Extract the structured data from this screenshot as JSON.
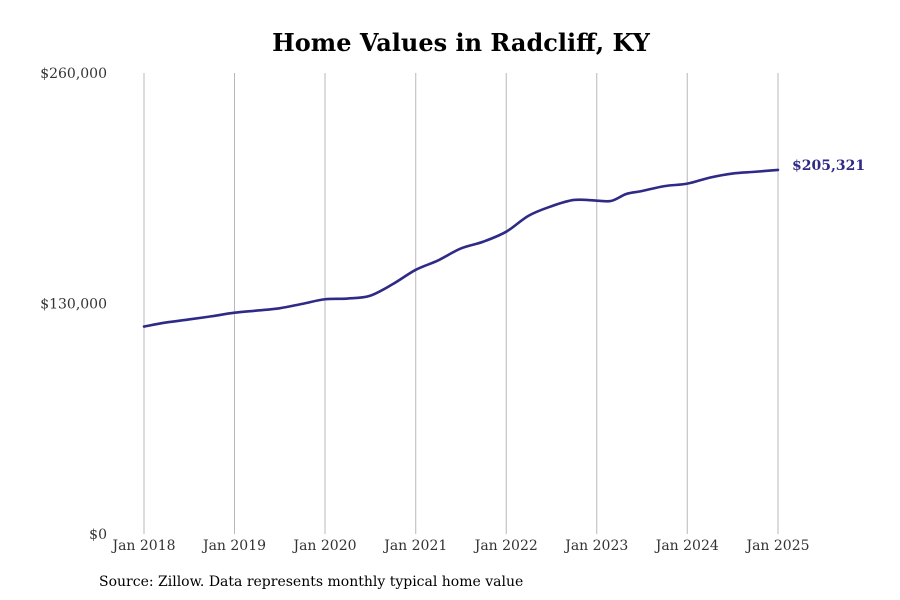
{
  "chart_data": {
    "type": "line",
    "title": "Home Values in Radcliff, KY",
    "xlabel": "",
    "ylabel": "",
    "ylim": [
      0,
      260000
    ],
    "y_ticks": [
      {
        "value": 0,
        "label": "$0"
      },
      {
        "value": 130000,
        "label": "$130,000"
      },
      {
        "value": 260000,
        "label": "$260,000"
      }
    ],
    "x_ticks": [
      {
        "date": "2018-01",
        "label": "Jan 2018"
      },
      {
        "date": "2019-01",
        "label": "Jan 2019"
      },
      {
        "date": "2020-01",
        "label": "Jan 2020"
      },
      {
        "date": "2021-01",
        "label": "Jan 2021"
      },
      {
        "date": "2022-01",
        "label": "Jan 2022"
      },
      {
        "date": "2023-01",
        "label": "Jan 2023"
      },
      {
        "date": "2024-01",
        "label": "Jan 2024"
      },
      {
        "date": "2025-01",
        "label": "Jan 2025"
      }
    ],
    "grid": "vertical",
    "line_color": "#2e2a86",
    "end_label": "$205,321",
    "series": [
      {
        "name": "",
        "points": [
          [
            "2018-01",
            117000
          ],
          [
            "2018-04",
            119300
          ],
          [
            "2018-07",
            121000
          ],
          [
            "2018-10",
            122800
          ],
          [
            "2019-01",
            124800
          ],
          [
            "2019-04",
            126000
          ],
          [
            "2019-07",
            127300
          ],
          [
            "2019-10",
            129800
          ],
          [
            "2020-01",
            132400
          ],
          [
            "2020-04",
            132800
          ],
          [
            "2020-07",
            134400
          ],
          [
            "2020-10",
            141000
          ],
          [
            "2021-01",
            149000
          ],
          [
            "2021-04",
            154300
          ],
          [
            "2021-07",
            161000
          ],
          [
            "2021-10",
            164900
          ],
          [
            "2022-01",
            170500
          ],
          [
            "2022-04",
            179500
          ],
          [
            "2022-07",
            184800
          ],
          [
            "2022-10",
            188400
          ],
          [
            "2023-01",
            188000
          ],
          [
            "2023-03",
            187900
          ],
          [
            "2023-05",
            191800
          ],
          [
            "2023-07",
            193400
          ],
          [
            "2023-10",
            196200
          ],
          [
            "2024-01",
            197600
          ],
          [
            "2024-04",
            201000
          ],
          [
            "2024-07",
            203300
          ],
          [
            "2024-10",
            204300
          ],
          [
            "2025-01",
            205321
          ]
        ]
      }
    ]
  },
  "source_note": "Source: Zillow. Data represents monthly typical home value"
}
